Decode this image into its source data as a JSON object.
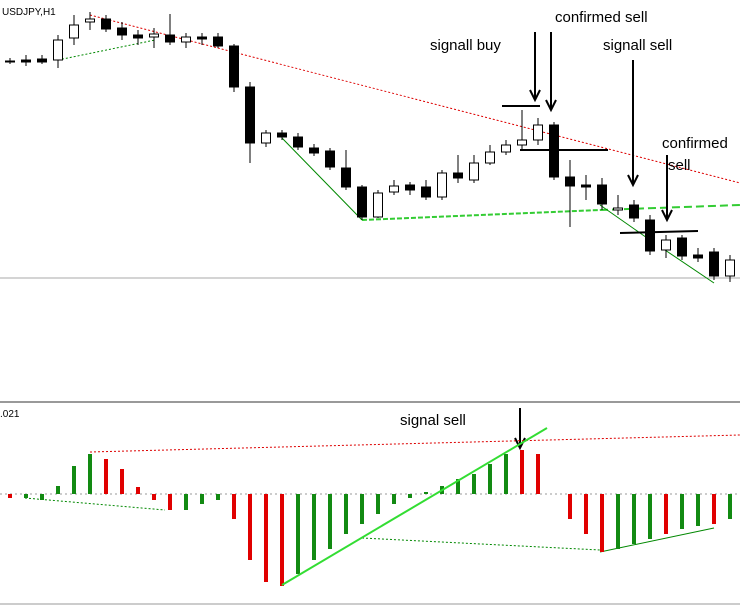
{
  "chart_data": [
    {
      "type": "candlestick",
      "title": "USDJPY,H1",
      "ylim": [
        -100,
        300
      ],
      "open": [
        239,
        240,
        241,
        240,
        262,
        278,
        281,
        272,
        265,
        263,
        265,
        258,
        263,
        263,
        254,
        213,
        157,
        167,
        163,
        152,
        149,
        132,
        113,
        83,
        108,
        115,
        113,
        103,
        127,
        120,
        137,
        148,
        155,
        160,
        175,
        123,
        115,
        115,
        90,
        95,
        80,
        50,
        62,
        45,
        48,
        24
      ],
      "high": [
        242,
        245,
        245,
        265,
        285,
        288,
        285,
        278,
        270,
        272,
        286,
        267,
        267,
        267,
        256,
        218,
        170,
        170,
        167,
        156,
        152,
        150,
        115,
        110,
        120,
        118,
        120,
        130,
        145,
        145,
        155,
        160,
        190,
        182,
        178,
        140,
        125,
        122,
        105,
        100,
        85,
        65,
        65,
        52,
        52,
        45
      ],
      "low": [
        236,
        234,
        236,
        232,
        255,
        270,
        268,
        260,
        255,
        252,
        255,
        252,
        255,
        252,
        208,
        137,
        153,
        160,
        150,
        144,
        130,
        110,
        80,
        82,
        105,
        105,
        100,
        100,
        117,
        117,
        135,
        145,
        150,
        155,
        120,
        73,
        100,
        90,
        85,
        78,
        45,
        42,
        40,
        38,
        20,
        18
      ],
      "close": [
        239,
        238,
        238,
        260,
        275,
        281,
        271,
        265,
        262,
        266,
        258,
        263,
        261,
        254,
        213,
        157,
        167,
        163,
        153,
        147,
        133,
        113,
        83,
        107,
        114,
        110,
        103,
        127,
        122,
        137,
        148,
        155,
        160,
        175,
        123,
        114,
        113,
        96,
        92,
        82,
        49,
        60,
        44,
        42,
        24,
        40
      ],
      "annotations": [
        "signall buy",
        "confirmed sell",
        "signall sell",
        "confirmed",
        "sell"
      ]
    },
    {
      "type": "histogram-indicator",
      "title": ".021",
      "ylim": [
        -112,
        90
      ],
      "values": [
        -4,
        -4,
        -6,
        8,
        28,
        40,
        35,
        25,
        7,
        -6,
        -16,
        -16,
        -10,
        -6,
        -25,
        -66,
        -88,
        -92,
        -80,
        -66,
        -55,
        -40,
        -30,
        -20,
        -10,
        -4,
        2,
        8,
        15,
        20,
        30,
        40,
        44,
        40,
        null,
        -25,
        -40,
        -58,
        -55,
        -50,
        -45,
        -40,
        -35,
        -32,
        -30,
        -25
      ],
      "colors": [
        "#e00000",
        "#128a12",
        "#128a12",
        "#128a12",
        "#128a12",
        "#128a12",
        "#e00000",
        "#e00000",
        "#e00000",
        "#e00000",
        "#e00000",
        "#128a12",
        "#128a12",
        "#128a12",
        "#e00000",
        "#e00000",
        "#e00000",
        "#e00000",
        "#128a12",
        "#128a12",
        "#128a12",
        "#128a12",
        "#128a12",
        "#128a12",
        "#128a12",
        "#128a12",
        "#128a12",
        "#128a12",
        "#128a12",
        "#128a12",
        "#128a12",
        "#128a12",
        "#e00000",
        "#e00000",
        null,
        "#e00000",
        "#e00000",
        "#e00000",
        "#128a12",
        "#128a12",
        "#128a12",
        "#e00000",
        "#128a12",
        "#128a12",
        "#e00000",
        "#128a12"
      ],
      "annotations": [
        "signal sell"
      ]
    }
  ]
}
